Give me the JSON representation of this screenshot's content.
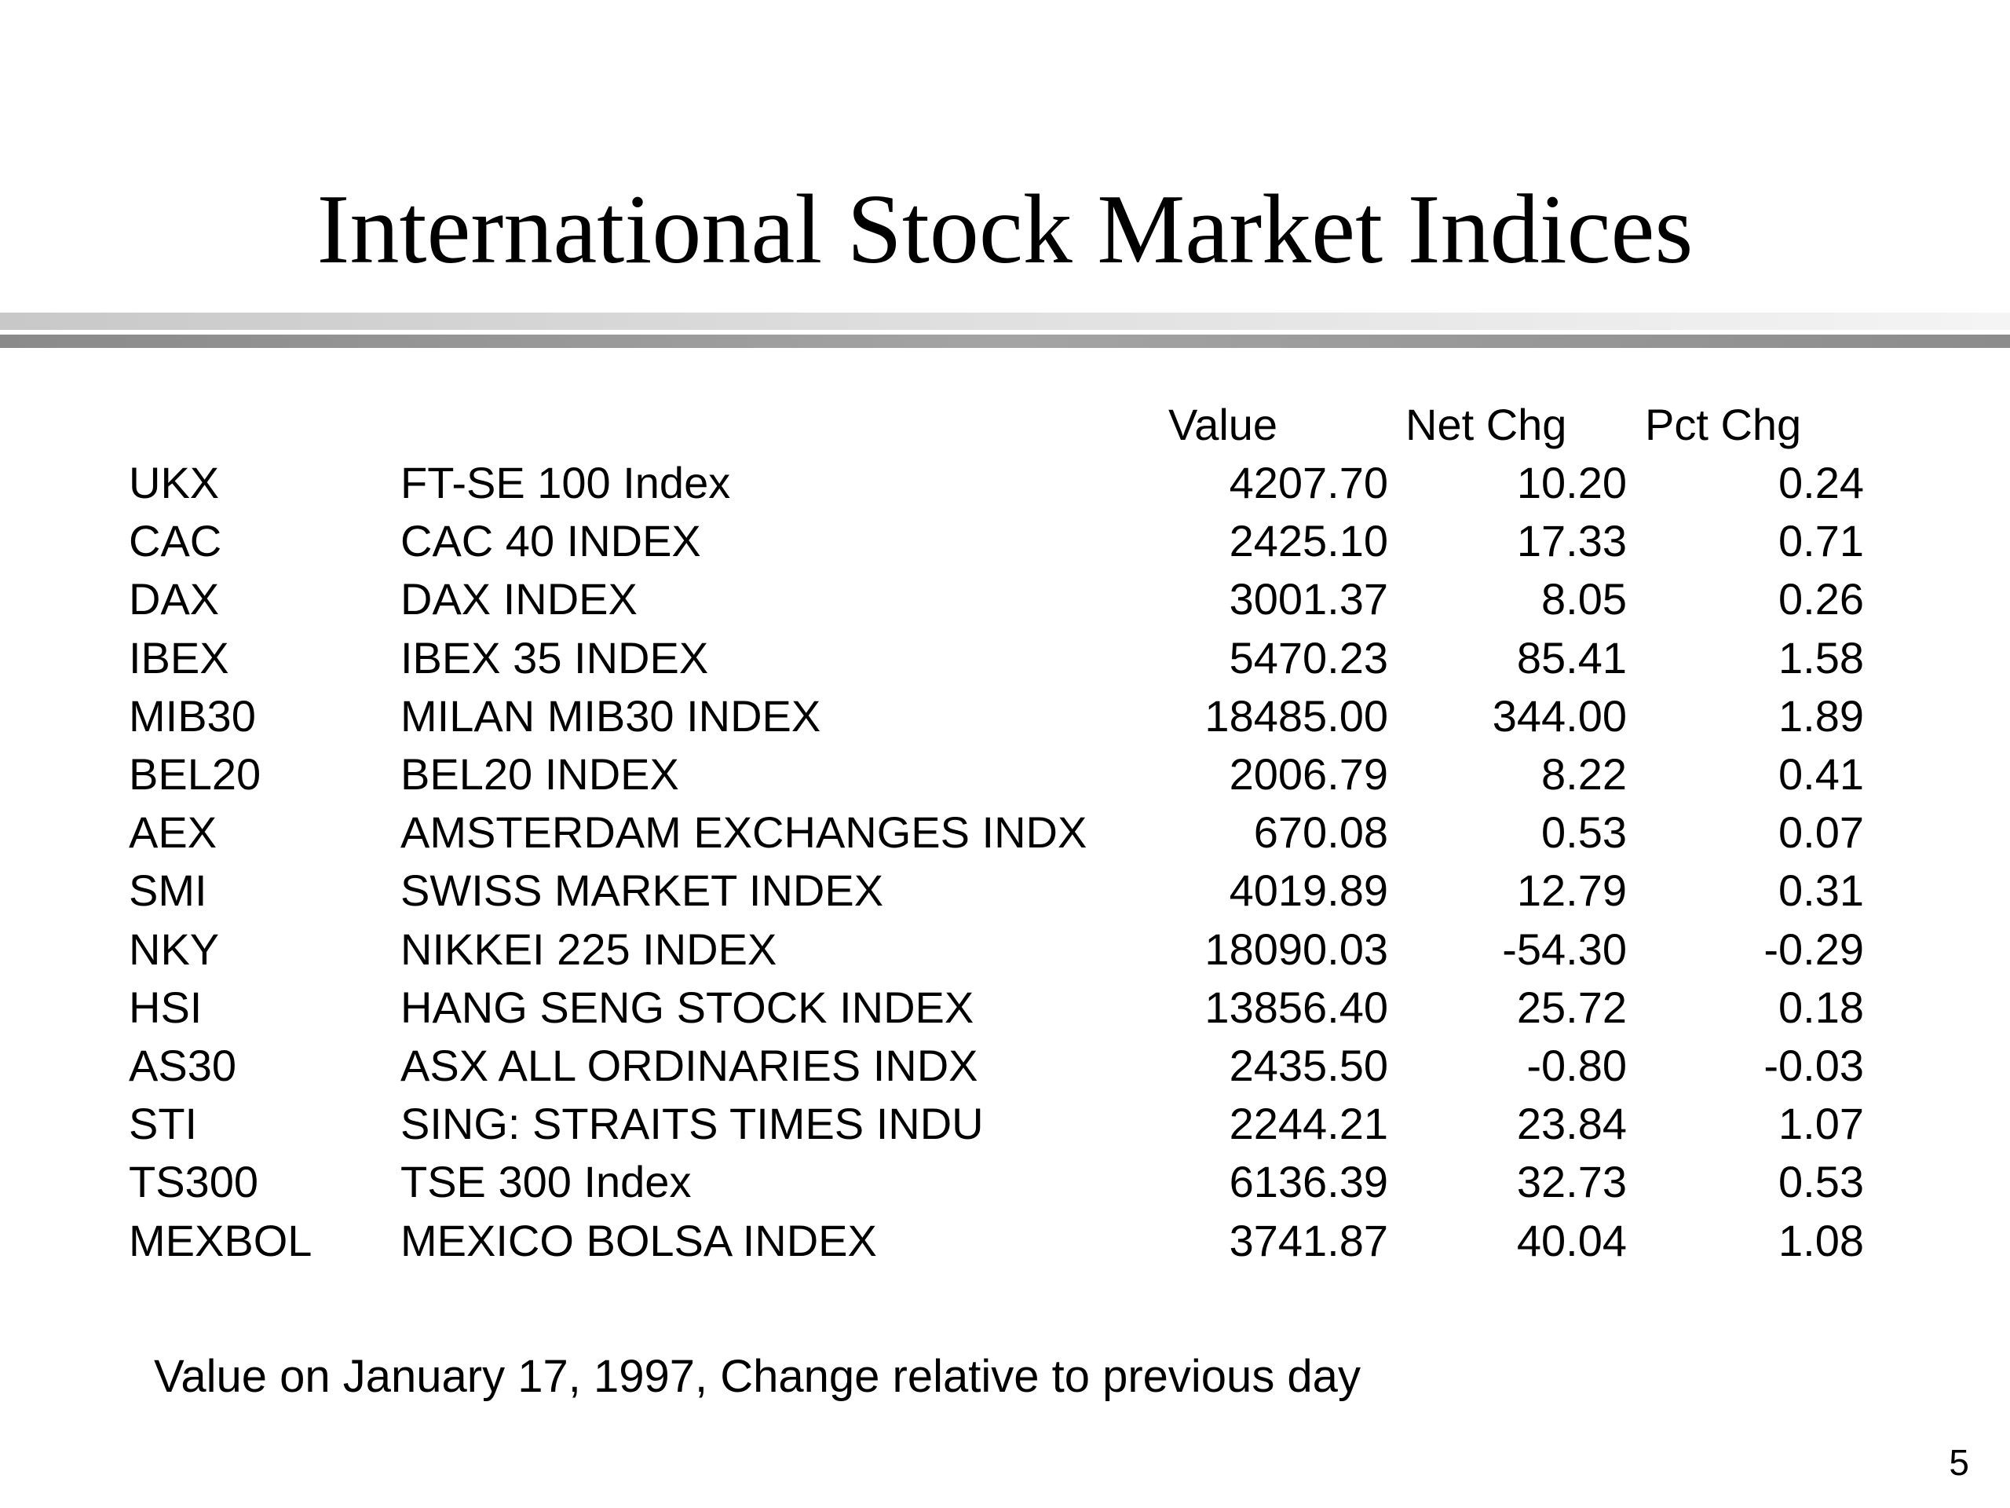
{
  "title": "International Stock Market Indices",
  "table": {
    "headers": [
      "Value",
      "Net Chg",
      "Pct Chg"
    ],
    "rows": [
      {
        "code": "UKX",
        "name": "FT-SE 100 Index",
        "value": "4207.70",
        "net_chg": "10.20",
        "pct_chg": "0.24"
      },
      {
        "code": "CAC",
        "name": "CAC 40 INDEX",
        "value": "2425.10",
        "net_chg": "17.33",
        "pct_chg": "0.71"
      },
      {
        "code": "DAX",
        "name": "DAX INDEX",
        "value": "3001.37",
        "net_chg": "8.05",
        "pct_chg": "0.26"
      },
      {
        "code": "IBEX",
        "name": "IBEX 35 INDEX",
        "value": "5470.23",
        "net_chg": "85.41",
        "pct_chg": "1.58"
      },
      {
        "code": "MIB30",
        "name": "MILAN MIB30 INDEX",
        "value": "18485.00",
        "net_chg": "344.00",
        "pct_chg": "1.89"
      },
      {
        "code": "BEL20",
        "name": "BEL20 INDEX",
        "value": "2006.79",
        "net_chg": "8.22",
        "pct_chg": "0.41"
      },
      {
        "code": "AEX",
        "name": "AMSTERDAM EXCHANGES INDX",
        "value": "670.08",
        "net_chg": "0.53",
        "pct_chg": "0.07"
      },
      {
        "code": "SMI",
        "name": "SWISS MARKET INDEX",
        "value": "4019.89",
        "net_chg": "12.79",
        "pct_chg": "0.31"
      },
      {
        "code": "NKY",
        "name": "NIKKEI 225 INDEX",
        "value": "18090.03",
        "net_chg": "-54.30",
        "pct_chg": "-0.29"
      },
      {
        "code": "HSI",
        "name": "HANG SENG STOCK INDEX",
        "value": "13856.40",
        "net_chg": "25.72",
        "pct_chg": "0.18"
      },
      {
        "code": "AS30",
        "name": "ASX ALL ORDINARIES INDX",
        "value": "2435.50",
        "net_chg": "-0.80",
        "pct_chg": "-0.03"
      },
      {
        "code": "STI",
        "name": "SING: STRAITS TIMES INDU",
        "value": "2244.21",
        "net_chg": "23.84",
        "pct_chg": "1.07"
      },
      {
        "code": "TS300",
        "name": "TSE 300 Index",
        "value": "6136.39",
        "net_chg": "32.73",
        "pct_chg": "0.53"
      },
      {
        "code": "MEXBOL",
        "name": "MEXICO BOLSA INDEX",
        "value": "3741.87",
        "net_chg": "40.04",
        "pct_chg": "1.08"
      }
    ]
  },
  "footnote": "Value on January 17, 1997, Change relative to previous day",
  "page_number": "5"
}
